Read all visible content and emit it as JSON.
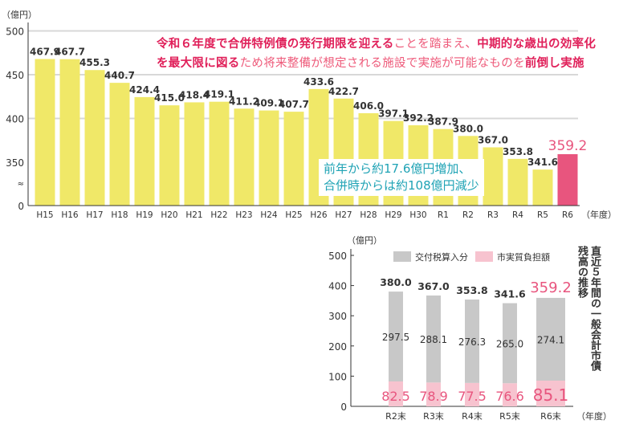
{
  "headline": {
    "line1": [
      {
        "text": "令和６年度で合併特例債の発行期限を迎える",
        "style": "strong"
      },
      {
        "text": "ことを踏まえ、",
        "style": "light"
      },
      {
        "text": "中期的な歳出の効率化",
        "style": "strong"
      }
    ],
    "line2": [
      {
        "text": "を最大限に図る",
        "style": "strong"
      },
      {
        "text": "ため将来整備が想定される施設で実施が可能なものを",
        "style": "light"
      },
      {
        "text": "前倒し実施",
        "style": "strong"
      }
    ]
  },
  "note": {
    "line1": "前年から約17.6億円増加、",
    "line2": "合併時からは約108億円減少"
  },
  "side_title": "直近５年間の一般会計市債残高の推移",
  "chart_data": [
    {
      "type": "bar",
      "ylabel": "（億円）",
      "xlabel": "（年度）",
      "ylim": [
        0,
        500
      ],
      "axis_break": "between 0 and 350",
      "yticks": [
        0,
        350,
        400,
        450,
        500
      ],
      "grid": true,
      "categories": [
        "H15",
        "H16",
        "H17",
        "H18",
        "H19",
        "H20",
        "H21",
        "H22",
        "H23",
        "H24",
        "H25",
        "H26",
        "H27",
        "H28",
        "H29",
        "H30",
        "R1",
        "R2",
        "R3",
        "R4",
        "R5",
        "R6"
      ],
      "values": [
        467.9,
        467.7,
        455.3,
        440.7,
        424.4,
        415.0,
        418.4,
        419.1,
        411.2,
        409.1,
        407.7,
        433.6,
        422.7,
        406.0,
        397.1,
        392.2,
        387.9,
        380.0,
        367.0,
        353.8,
        341.6,
        359.2
      ],
      "colors": {
        "bar": "#f0e868",
        "highlight": "#e8557e",
        "grid": "#d8d8d8"
      }
    },
    {
      "type": "bar",
      "stacked": true,
      "ylabel": "（億円）",
      "xlabel": "（年度）",
      "ylim": [
        0,
        500
      ],
      "yticks": [
        0,
        100,
        200,
        300,
        400,
        500
      ],
      "categories": [
        "R2末",
        "R3末",
        "R4末",
        "R5末",
        "R6末"
      ],
      "totals": [
        380.0,
        367.0,
        353.8,
        341.6,
        359.2
      ],
      "series": [
        {
          "name": "市実質負担額",
          "values": [
            82.5,
            78.9,
            77.5,
            76.6,
            85.1
          ],
          "color": "#f7c3cf"
        },
        {
          "name": "交付税算入分",
          "values": [
            297.5,
            288.1,
            276.3,
            265.0,
            274.1
          ],
          "color": "#c8c8c8"
        }
      ],
      "legend": "top"
    }
  ]
}
